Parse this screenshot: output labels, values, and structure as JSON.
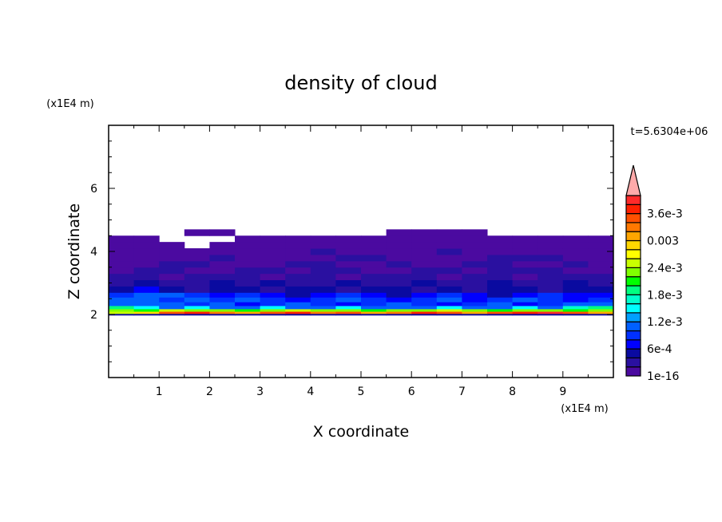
{
  "chart_data": {
    "type": "heatmap",
    "title": "density of cloud",
    "xlabel": "X coordinate",
    "ylabel": "Z coordinate",
    "x_unit": "(x1E4 m)",
    "y_unit": "(x1E4 m)",
    "time_label": "t=5.6304e+06",
    "xlim": [
      0,
      10
    ],
    "ylim": [
      0,
      8
    ],
    "xticks": [
      1,
      2,
      3,
      4,
      5,
      6,
      7,
      8,
      9
    ],
    "yticks": [
      2,
      4,
      6
    ],
    "grid": false,
    "colorbar": {
      "min": 1e-16,
      "step": 0.0002,
      "colors": [
        "#4b0aa0",
        "#2a10a0",
        "#0a0aa0",
        "#0000ff",
        "#0030ff",
        "#0060ff",
        "#00a0ff",
        "#00ffff",
        "#00ffcc",
        "#00ff80",
        "#00ff00",
        "#80ff00",
        "#c8ff00",
        "#ffff00",
        "#ffd700",
        "#ffa500",
        "#ff7800",
        "#ff5000",
        "#ff2000",
        "#ff2a2a"
      ],
      "over_color": "#ffaaaa",
      "labels": [
        {
          "level": 0,
          "text": "1e-16"
        },
        {
          "level": 3,
          "text": "6e-4"
        },
        {
          "level": 6,
          "text": "1.2e-3"
        },
        {
          "level": 9,
          "text": "1.8e-3"
        },
        {
          "level": 12,
          "text": "2.4e-3"
        },
        {
          "level": 15,
          "text": "0.003"
        },
        {
          "level": 18,
          "text": "3.6e-3"
        }
      ]
    },
    "x_edges": [
      0,
      0.5,
      1,
      1.5,
      2,
      2.5,
      3,
      3.5,
      4,
      4.5,
      5,
      5.5,
      6,
      6.5,
      7,
      7.5,
      8,
      8.5,
      9,
      9.5,
      10
    ],
    "z_edges": [
      1.98,
      2.03,
      2.1,
      2.18,
      2.28,
      2.4,
      2.55,
      2.7,
      2.9,
      3.1,
      3.3,
      3.5,
      3.7,
      3.9,
      4.1,
      4.3,
      4.5,
      4.7
    ],
    "values": [
      [
        0.0005,
        0.0005,
        0.0005,
        0.0005,
        0.0005,
        0.0005,
        0.0005,
        0.0005,
        0.0005,
        0.0005,
        0.0005,
        0.0005,
        0.0005,
        0.0005,
        0.0005,
        0.0005,
        0.0005,
        0.0005,
        0.0005,
        0.0005
      ],
      [
        0.0026,
        0.0028,
        0.0034,
        0.0036,
        0.0032,
        0.003,
        0.0034,
        0.0036,
        0.0032,
        0.0034,
        0.003,
        0.0032,
        0.0036,
        0.0034,
        0.003,
        0.0034,
        0.0036,
        0.0038,
        0.0034,
        0.003
      ],
      [
        0.0022,
        0.002,
        0.0026,
        0.0024,
        0.0022,
        0.002,
        0.0024,
        0.0026,
        0.0022,
        0.0024,
        0.002,
        0.0022,
        0.0024,
        0.0026,
        0.0022,
        0.002,
        0.0024,
        0.0022,
        0.002,
        0.0024
      ],
      [
        0.0018,
        0.0014,
        0.0012,
        0.0014,
        0.001,
        0.0012,
        0.0014,
        0.0012,
        0.001,
        0.0014,
        0.0012,
        0.001,
        0.0012,
        0.0014,
        0.001,
        0.0012,
        0.0014,
        0.0012,
        0.0016,
        0.0018
      ],
      [
        0.0012,
        0.001,
        0.0012,
        0.0009,
        0.001,
        0.0007,
        0.0009,
        0.0011,
        0.0009,
        0.0007,
        0.0009,
        0.0011,
        0.0009,
        0.0007,
        0.0009,
        0.0011,
        0.0007,
        0.0009,
        0.0011,
        0.0012
      ],
      [
        0.001,
        0.0011,
        0.0009,
        0.0011,
        0.0009,
        0.001,
        0.0009,
        0.0007,
        0.0009,
        0.001,
        0.0009,
        0.0007,
        0.0009,
        0.001,
        0.0007,
        0.0009,
        0.001,
        0.0009,
        0.0007,
        0.0009
      ],
      [
        0.0009,
        0.001,
        0.0011,
        0.0009,
        0.0007,
        0.0009,
        0.0007,
        0.0005,
        0.0007,
        0.0009,
        0.0007,
        0.0005,
        0.0007,
        0.0009,
        0.0007,
        0.0005,
        0.0007,
        0.0009,
        0.0007,
        0.0007
      ],
      [
        0.0005,
        0.0007,
        0.0005,
        0.0003,
        0.0005,
        0.0005,
        0.0003,
        0.0005,
        0.0005,
        0.0003,
        0.0005,
        0.0005,
        0.0003,
        0.0005,
        0.0003,
        0.0005,
        0.0005,
        0.0003,
        0.0005,
        0.0005
      ],
      [
        0.0003,
        0.0005,
        0.0003,
        0.0003,
        0.0005,
        0.0003,
        0.0005,
        0.0003,
        0.0003,
        0.0005,
        0.0003,
        0.0003,
        0.0005,
        0.0003,
        0.0003,
        0.0005,
        0.0003,
        0.0003,
        0.0005,
        0.0003
      ],
      [
        0.0003,
        0.0003,
        0.0001,
        0.0003,
        0.0003,
        0.0003,
        0.0001,
        0.0003,
        0.0003,
        0.0001,
        0.0003,
        0.0003,
        0.0003,
        0.0001,
        0.0003,
        0.0003,
        0.0001,
        0.0003,
        0.0003,
        0.0003
      ],
      [
        0.0001,
        0.0003,
        0.0003,
        0.0001,
        0.0001,
        0.0003,
        0.0003,
        0.0001,
        0.0003,
        0.0003,
        0.0001,
        0.0001,
        0.0003,
        0.0003,
        0.0001,
        0.0003,
        0.0003,
        0.0003,
        0.0001,
        0.0001
      ],
      [
        0.0001,
        0.0001,
        0.0003,
        0.0003,
        0.0001,
        0.0001,
        0.0001,
        0.0003,
        0.0003,
        0.0001,
        0.0001,
        0.0003,
        0.0001,
        0.0001,
        0.0003,
        0.0003,
        0.0001,
        0.0001,
        0.0003,
        0.0001
      ],
      [
        0.0001,
        0.0001,
        0.0001,
        0.0001,
        0.0003,
        0.0001,
        0.0001,
        0.0001,
        0.0001,
        0.0003,
        0.0003,
        0.0001,
        0.0001,
        0.0001,
        0.0001,
        0.0003,
        0.0003,
        0.0003,
        0.0001,
        0.0001
      ],
      [
        0.0001,
        0.0001,
        0.0001,
        0.0001,
        0.0001,
        0.0001,
        0.0001,
        0.0001,
        0.0003,
        0.0001,
        0.0001,
        0.0001,
        0.0001,
        0.0003,
        0.0001,
        0.0001,
        0.0001,
        0.0001,
        0.0001,
        0.0001
      ],
      [
        0.0001,
        0.0001,
        0.0001,
        null,
        0.0001,
        0.0001,
        0.0001,
        0.0001,
        0.0001,
        0.0001,
        0.0001,
        0.0001,
        0.0001,
        0.0001,
        0.0001,
        0.0001,
        0.0001,
        0.0001,
        0.0001,
        0.0001
      ],
      [
        0.0001,
        0.0001,
        null,
        null,
        null,
        0.0001,
        0.0001,
        0.0001,
        0.0001,
        0.0001,
        0.0001,
        0.0001,
        0.0001,
        0.0001,
        0.0001,
        0.0001,
        0.0001,
        0.0001,
        0.0001,
        0.0001
      ],
      [
        null,
        null,
        null,
        0.0001,
        0.0001,
        null,
        null,
        null,
        null,
        null,
        null,
        0.0001,
        0.0001,
        0.0001,
        0.0001,
        null,
        null,
        null,
        null,
        null
      ]
    ]
  }
}
